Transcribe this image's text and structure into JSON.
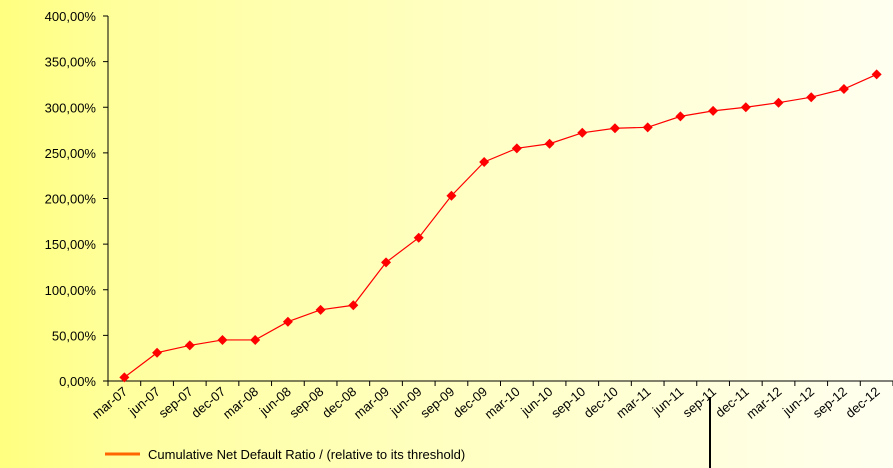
{
  "chart_data": {
    "type": "line",
    "categories": [
      "mar-07",
      "jun-07",
      "sep-07",
      "dec-07",
      "mar-08",
      "jun-08",
      "sep-08",
      "dec-08",
      "mar-09",
      "jun-09",
      "sep-09",
      "dec-09",
      "mar-10",
      "jun-10",
      "sep-10",
      "dec-10",
      "mar-11",
      "jun-11",
      "sep-11",
      "dec-11",
      "mar-12",
      "jun-12",
      "sep-12",
      "dec-12"
    ],
    "series": [
      {
        "name": "Cumulative Net Default Ratio / (relative to its threshold)",
        "color": "#ff0000",
        "legend_color": "#ff6600",
        "values": [
          4,
          31,
          39,
          45,
          45,
          65,
          78,
          83,
          130,
          157,
          203,
          240,
          255,
          260,
          272,
          277,
          278,
          290,
          296,
          300,
          305,
          311,
          320,
          336
        ]
      }
    ],
    "ylim": [
      0,
      400
    ],
    "yticks": [
      {
        "value": 0,
        "label": "0,00%"
      },
      {
        "value": 50,
        "label": "50,00%"
      },
      {
        "value": 100,
        "label": "100,00%"
      },
      {
        "value": 150,
        "label": "150,00%"
      },
      {
        "value": 200,
        "label": "200,00%"
      },
      {
        "value": 250,
        "label": "250,00%"
      },
      {
        "value": 300,
        "label": "300,00%"
      },
      {
        "value": 350,
        "label": "350,00%"
      },
      {
        "value": 400,
        "label": "400,00%"
      }
    ],
    "grid": false
  }
}
